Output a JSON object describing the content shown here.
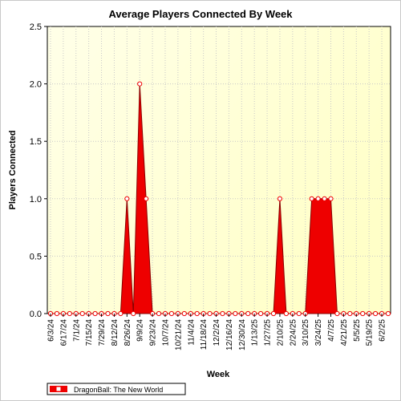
{
  "chart_data": {
    "type": "area",
    "title": "Average Players Connected By Week",
    "xlabel": "Week",
    "ylabel": "Players Connected",
    "ylim": [
      0,
      2.5
    ],
    "yticks": [
      "0.0",
      "0.5",
      "1.0",
      "1.5",
      "2.0",
      "2.5"
    ],
    "x": [
      "6/3/24",
      "6/10/24",
      "6/17/24",
      "6/24/24",
      "7/1/24",
      "7/8/24",
      "7/15/24",
      "7/22/24",
      "7/29/24",
      "8/5/24",
      "8/12/24",
      "8/19/24",
      "8/26/24",
      "9/2/24",
      "9/9/24",
      "9/16/24",
      "9/23/24",
      "9/30/24",
      "10/7/24",
      "10/14/24",
      "10/21/24",
      "10/28/24",
      "11/4/24",
      "11/11/24",
      "11/18/24",
      "11/25/24",
      "12/2/24",
      "12/9/24",
      "12/16/24",
      "12/23/24",
      "12/30/24",
      "1/6/25",
      "1/13/25",
      "1/20/25",
      "1/27/25",
      "2/3/25",
      "2/10/25",
      "2/17/25",
      "2/24/25",
      "3/3/25",
      "3/10/25",
      "3/17/25",
      "3/24/25",
      "3/31/25",
      "4/7/25",
      "4/14/25",
      "4/21/25",
      "4/28/25",
      "5/5/25",
      "5/12/25",
      "5/19/25",
      "5/26/25",
      "6/2/25",
      "6/9/25"
    ],
    "xtick_labels": [
      "6/3/24",
      "6/17/24",
      "7/1/24",
      "7/15/24",
      "7/29/24",
      "8/12/24",
      "8/26/24",
      "9/9/24",
      "9/23/24",
      "10/7/24",
      "10/21/24",
      "11/4/24",
      "11/18/24",
      "12/2/24",
      "12/16/24",
      "12/30/24",
      "1/13/25",
      "1/27/25",
      "2/10/25",
      "2/24/25",
      "3/10/25",
      "3/24/25",
      "4/7/25",
      "4/21/25",
      "5/5/25",
      "5/19/25",
      "6/2/25"
    ],
    "series": [
      {
        "name": "DragonBall: The New World",
        "values": [
          0,
          0,
          0,
          0,
          0,
          0,
          0,
          0,
          0,
          0,
          0,
          0,
          1,
          0,
          2,
          1,
          0,
          0,
          0,
          0,
          0,
          0,
          0,
          0,
          0,
          0,
          0,
          0,
          0,
          0,
          0,
          0,
          0,
          0,
          0,
          0,
          1,
          0,
          0,
          0,
          0,
          1,
          1,
          1,
          1,
          0,
          0,
          0,
          0,
          0,
          0,
          0,
          0,
          0
        ]
      }
    ],
    "grid": true,
    "legend": "bottom-left",
    "colors": {
      "series": "#ee0000",
      "plot_bg": "#ffffe0",
      "page_bg": "#ffffff"
    }
  }
}
